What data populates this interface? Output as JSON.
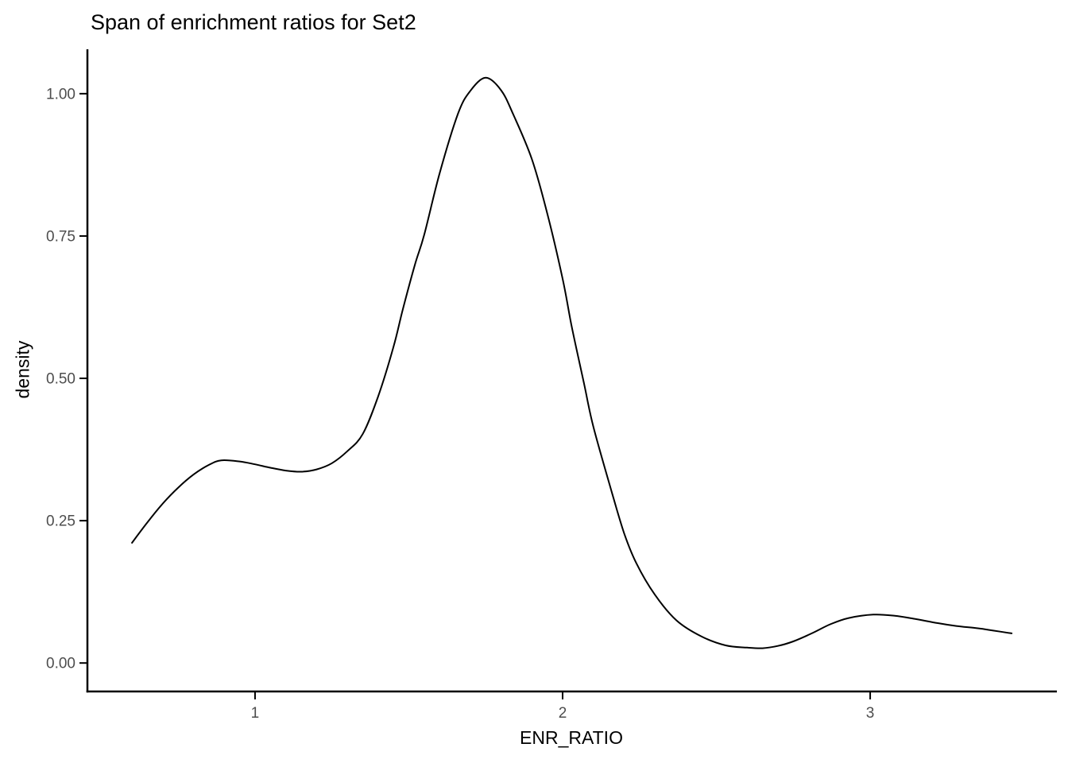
{
  "page": {
    "background": "#FFFFFF"
  },
  "chart_data": {
    "type": "line",
    "variant": "kernel-density",
    "title": "Span of enrichment ratios for Set2",
    "xlabel": "ENR_RATIO",
    "ylabel": "density",
    "x_ticks": [
      {
        "label": "1",
        "value": 1
      },
      {
        "label": "2",
        "value": 2
      },
      {
        "label": "3",
        "value": 3
      }
    ],
    "y_ticks": [
      {
        "label": "0.00",
        "value": 0.0
      },
      {
        "label": "0.25",
        "value": 0.25
      },
      {
        "label": "0.50",
        "value": 0.5
      },
      {
        "label": "0.75",
        "value": 0.75
      },
      {
        "label": "1.00",
        "value": 1.0
      }
    ],
    "xlim": [
      0.455,
      3.607
    ],
    "ylim": [
      -0.05,
      1.078
    ],
    "grid": false,
    "legend_position": "none",
    "colors": {
      "curve": "#000000",
      "axis": "#000000",
      "tick_label": "#4D4D4D",
      "title": "#000000",
      "background": "#FFFFFF"
    },
    "series": [
      {
        "name": "density",
        "points": [
          [
            0.6,
            0.211
          ],
          [
            0.65,
            0.247
          ],
          [
            0.7,
            0.28
          ],
          [
            0.75,
            0.308
          ],
          [
            0.8,
            0.331
          ],
          [
            0.85,
            0.348
          ],
          [
            0.89,
            0.356
          ],
          [
            0.95,
            0.354
          ],
          [
            1.0,
            0.349
          ],
          [
            1.05,
            0.343
          ],
          [
            1.1,
            0.338
          ],
          [
            1.15,
            0.336
          ],
          [
            1.2,
            0.34
          ],
          [
            1.25,
            0.351
          ],
          [
            1.3,
            0.372
          ],
          [
            1.35,
            0.402
          ],
          [
            1.4,
            0.468
          ],
          [
            1.45,
            0.555
          ],
          [
            1.48,
            0.62
          ],
          [
            1.52,
            0.7
          ],
          [
            1.55,
            0.752
          ],
          [
            1.6,
            0.86
          ],
          [
            1.66,
            0.965
          ],
          [
            1.7,
            1.005
          ],
          [
            1.75,
            1.028
          ],
          [
            1.8,
            1.006
          ],
          [
            1.84,
            0.963
          ],
          [
            1.9,
            0.885
          ],
          [
            1.95,
            0.79
          ],
          [
            2.0,
            0.675
          ],
          [
            2.03,
            0.59
          ],
          [
            2.07,
            0.49
          ],
          [
            2.1,
            0.415
          ],
          [
            2.16,
            0.3
          ],
          [
            2.2,
            0.228
          ],
          [
            2.24,
            0.175
          ],
          [
            2.3,
            0.12
          ],
          [
            2.37,
            0.075
          ],
          [
            2.45,
            0.047
          ],
          [
            2.53,
            0.031
          ],
          [
            2.6,
            0.027
          ],
          [
            2.65,
            0.026
          ],
          [
            2.7,
            0.03
          ],
          [
            2.75,
            0.038
          ],
          [
            2.81,
            0.052
          ],
          [
            2.87,
            0.068
          ],
          [
            2.93,
            0.079
          ],
          [
            3.01,
            0.085
          ],
          [
            3.08,
            0.083
          ],
          [
            3.15,
            0.077
          ],
          [
            3.22,
            0.07
          ],
          [
            3.28,
            0.065
          ],
          [
            3.35,
            0.061
          ],
          [
            3.4,
            0.057
          ],
          [
            3.46,
            0.052
          ]
        ]
      }
    ]
  }
}
